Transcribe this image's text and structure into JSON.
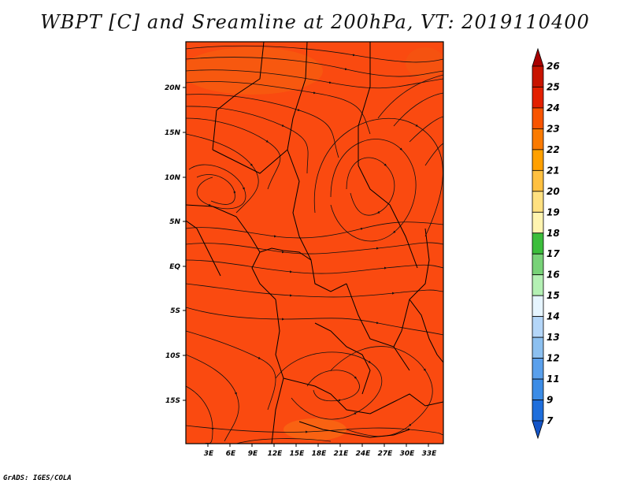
{
  "title": "WBPT [C] and Sreamline at 200hPa, VT: 2019110400",
  "credit": "GrADS: IGES/COLA",
  "map": {
    "variable": "WBPT",
    "fill_color": "#fa4a10",
    "lon_ticks": [
      "3E",
      "6E",
      "9E",
      "12E",
      "15E",
      "18E",
      "21E",
      "24E",
      "27E",
      "30E",
      "33E"
    ],
    "lat_ticks": [
      "20N",
      "15N",
      "10N",
      "5N",
      "EQ",
      "5S",
      "10S",
      "15S"
    ]
  },
  "colorbar": {
    "labels": [
      "26",
      "25",
      "24",
      "23",
      "22",
      "21",
      "20",
      "19",
      "18",
      "17",
      "16",
      "15",
      "14",
      "13",
      "12",
      "11",
      "9",
      "7"
    ],
    "colors": [
      "#a80000",
      "#c81400",
      "#e32000",
      "#f85400",
      "#fa7a00",
      "#ffa000",
      "#ffc040",
      "#ffe080",
      "#fff4b0",
      "#3cbe3c",
      "#78d278",
      "#b4f0b4",
      "#e6f5ff",
      "#b4d6f8",
      "#8cc0f0",
      "#5aa0ec",
      "#3c8ce6",
      "#1e6edc",
      "#1455c8"
    ]
  }
}
